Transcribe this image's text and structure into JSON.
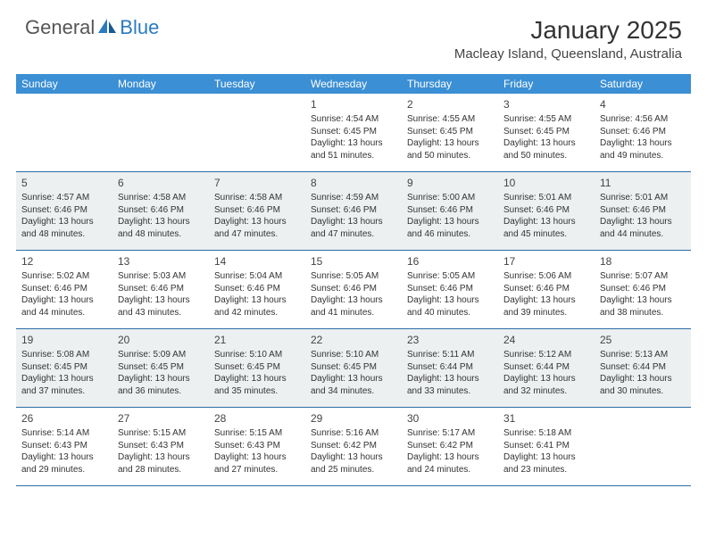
{
  "logo": {
    "text1": "General",
    "text2": "Blue"
  },
  "title": "January 2025",
  "location": "Macleay Island, Queensland, Australia",
  "days": [
    "Sunday",
    "Monday",
    "Tuesday",
    "Wednesday",
    "Thursday",
    "Friday",
    "Saturday"
  ],
  "colors": {
    "header_bg": "#3b8fd4",
    "header_text": "#ffffff",
    "row_border": "#2b6ca8",
    "alt_bg": "#edf0f1",
    "logo_gray": "#555555",
    "logo_blue": "#2b7bbf",
    "title_color": "#333333",
    "text_color": "#333333"
  },
  "weeks": [
    [
      null,
      null,
      null,
      {
        "n": "1",
        "sr": "4:54 AM",
        "ss": "6:45 PM",
        "dl": "13 hours and 51 minutes."
      },
      {
        "n": "2",
        "sr": "4:55 AM",
        "ss": "6:45 PM",
        "dl": "13 hours and 50 minutes."
      },
      {
        "n": "3",
        "sr": "4:55 AM",
        "ss": "6:45 PM",
        "dl": "13 hours and 50 minutes."
      },
      {
        "n": "4",
        "sr": "4:56 AM",
        "ss": "6:46 PM",
        "dl": "13 hours and 49 minutes."
      }
    ],
    [
      {
        "n": "5",
        "sr": "4:57 AM",
        "ss": "6:46 PM",
        "dl": "13 hours and 48 minutes."
      },
      {
        "n": "6",
        "sr": "4:58 AM",
        "ss": "6:46 PM",
        "dl": "13 hours and 48 minutes."
      },
      {
        "n": "7",
        "sr": "4:58 AM",
        "ss": "6:46 PM",
        "dl": "13 hours and 47 minutes."
      },
      {
        "n": "8",
        "sr": "4:59 AM",
        "ss": "6:46 PM",
        "dl": "13 hours and 47 minutes."
      },
      {
        "n": "9",
        "sr": "5:00 AM",
        "ss": "6:46 PM",
        "dl": "13 hours and 46 minutes."
      },
      {
        "n": "10",
        "sr": "5:01 AM",
        "ss": "6:46 PM",
        "dl": "13 hours and 45 minutes."
      },
      {
        "n": "11",
        "sr": "5:01 AM",
        "ss": "6:46 PM",
        "dl": "13 hours and 44 minutes."
      }
    ],
    [
      {
        "n": "12",
        "sr": "5:02 AM",
        "ss": "6:46 PM",
        "dl": "13 hours and 44 minutes."
      },
      {
        "n": "13",
        "sr": "5:03 AM",
        "ss": "6:46 PM",
        "dl": "13 hours and 43 minutes."
      },
      {
        "n": "14",
        "sr": "5:04 AM",
        "ss": "6:46 PM",
        "dl": "13 hours and 42 minutes."
      },
      {
        "n": "15",
        "sr": "5:05 AM",
        "ss": "6:46 PM",
        "dl": "13 hours and 41 minutes."
      },
      {
        "n": "16",
        "sr": "5:05 AM",
        "ss": "6:46 PM",
        "dl": "13 hours and 40 minutes."
      },
      {
        "n": "17",
        "sr": "5:06 AM",
        "ss": "6:46 PM",
        "dl": "13 hours and 39 minutes."
      },
      {
        "n": "18",
        "sr": "5:07 AM",
        "ss": "6:46 PM",
        "dl": "13 hours and 38 minutes."
      }
    ],
    [
      {
        "n": "19",
        "sr": "5:08 AM",
        "ss": "6:45 PM",
        "dl": "13 hours and 37 minutes."
      },
      {
        "n": "20",
        "sr": "5:09 AM",
        "ss": "6:45 PM",
        "dl": "13 hours and 36 minutes."
      },
      {
        "n": "21",
        "sr": "5:10 AM",
        "ss": "6:45 PM",
        "dl": "13 hours and 35 minutes."
      },
      {
        "n": "22",
        "sr": "5:10 AM",
        "ss": "6:45 PM",
        "dl": "13 hours and 34 minutes."
      },
      {
        "n": "23",
        "sr": "5:11 AM",
        "ss": "6:44 PM",
        "dl": "13 hours and 33 minutes."
      },
      {
        "n": "24",
        "sr": "5:12 AM",
        "ss": "6:44 PM",
        "dl": "13 hours and 32 minutes."
      },
      {
        "n": "25",
        "sr": "5:13 AM",
        "ss": "6:44 PM",
        "dl": "13 hours and 30 minutes."
      }
    ],
    [
      {
        "n": "26",
        "sr": "5:14 AM",
        "ss": "6:43 PM",
        "dl": "13 hours and 29 minutes."
      },
      {
        "n": "27",
        "sr": "5:15 AM",
        "ss": "6:43 PM",
        "dl": "13 hours and 28 minutes."
      },
      {
        "n": "28",
        "sr": "5:15 AM",
        "ss": "6:43 PM",
        "dl": "13 hours and 27 minutes."
      },
      {
        "n": "29",
        "sr": "5:16 AM",
        "ss": "6:42 PM",
        "dl": "13 hours and 25 minutes."
      },
      {
        "n": "30",
        "sr": "5:17 AM",
        "ss": "6:42 PM",
        "dl": "13 hours and 24 minutes."
      },
      {
        "n": "31",
        "sr": "5:18 AM",
        "ss": "6:41 PM",
        "dl": "13 hours and 23 minutes."
      },
      null
    ]
  ],
  "labels": {
    "sunrise": "Sunrise: ",
    "sunset": "Sunset: ",
    "daylight": "Daylight: "
  }
}
